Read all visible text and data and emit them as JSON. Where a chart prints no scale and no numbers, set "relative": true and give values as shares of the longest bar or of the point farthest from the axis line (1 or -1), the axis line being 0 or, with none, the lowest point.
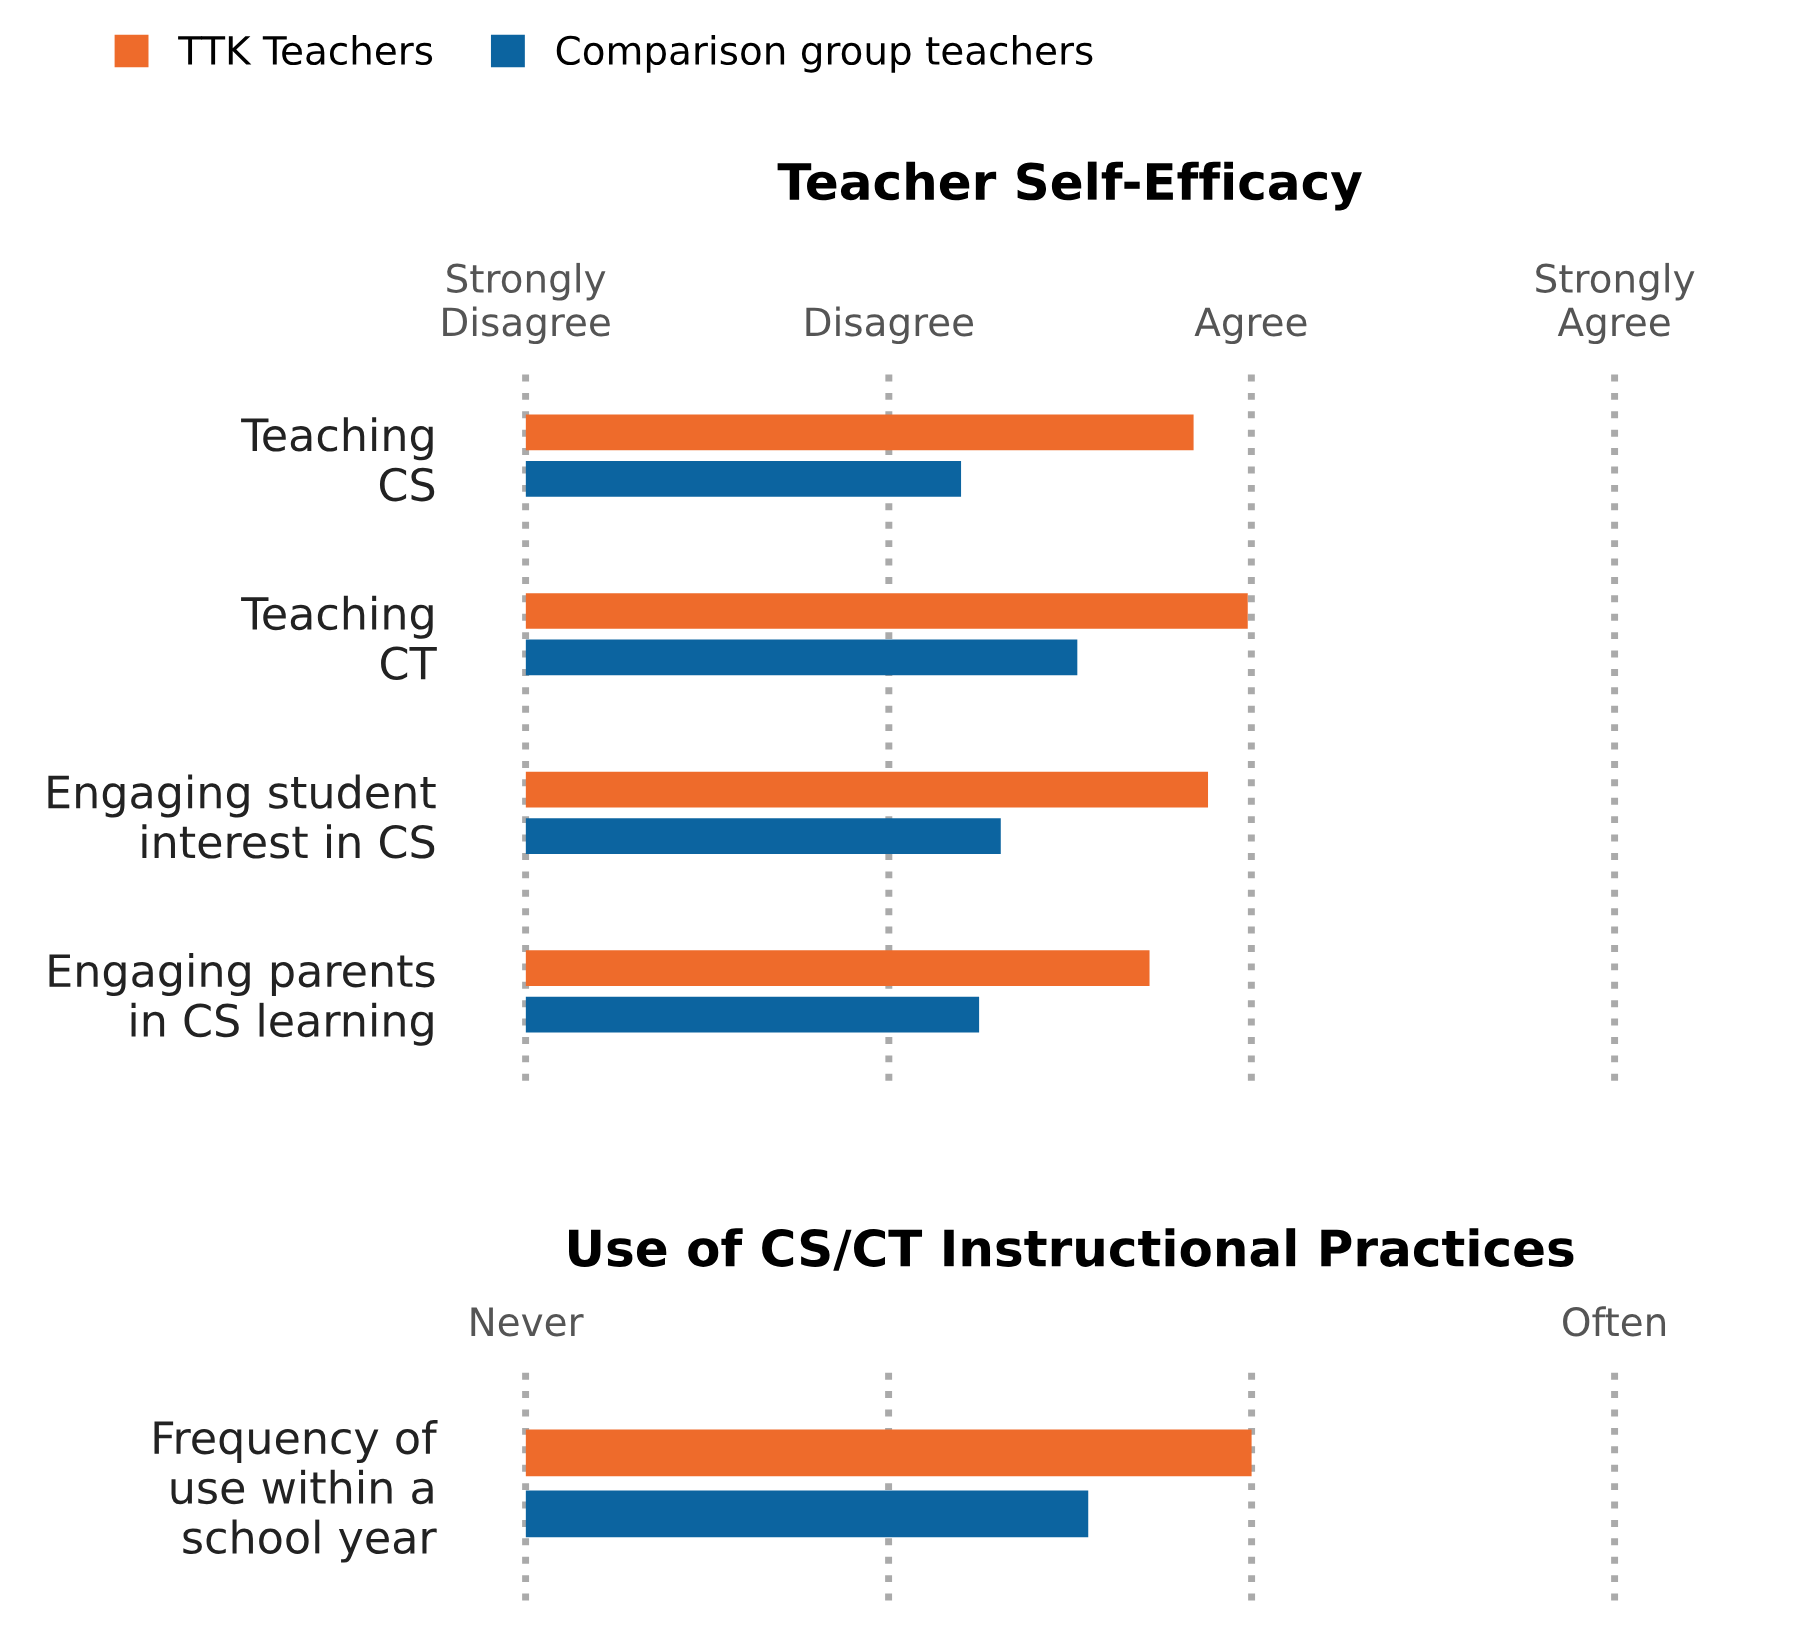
{
  "chart_data": [
    {
      "type": "bar",
      "orientation": "horizontal",
      "relative": true,
      "title": "Teacher Self-Efficacy",
      "categories": [
        "Teaching\nCS",
        "Teaching\nCT",
        "Engaging student\ninterest in CS",
        "Engaging parents\nin CS learning"
      ],
      "series": [
        {
          "name": "TTK Teachers",
          "color": "#ee6b2b",
          "values": [
            0.925,
            1,
            0.945,
            0.864
          ]
        },
        {
          "name": "Comparison group teachers",
          "color": "#0c64a0",
          "values": [
            0.603,
            0.764,
            0.658,
            0.628
          ]
        }
      ],
      "ref_lines": [
        {
          "axis": "x",
          "value": 0,
          "label": "Strongly\nDisagree"
        },
        {
          "axis": "x",
          "value": 0.503,
          "label": "Disagree"
        },
        {
          "axis": "x",
          "value": 1.005,
          "label": "Agree"
        },
        {
          "axis": "x",
          "value": 1.508,
          "label": "Strongly\nAgree"
        }
      ],
      "legend": "top left"
    },
    {
      "type": "bar",
      "orientation": "horizontal",
      "relative": true,
      "title": "Use of CS/CT Instructional Practices",
      "categories": [
        "Frequency of\nuse within a\nschool year"
      ],
      "series": [
        {
          "color": "#ee6b2b",
          "values": [
            1
          ]
        },
        {
          "color": "#0c64a0",
          "values": [
            0.775
          ]
        }
      ],
      "ref_lines": [
        {
          "axis": "x",
          "value": 0,
          "label": "Never"
        },
        {
          "axis": "x",
          "value": 0.5
        },
        {
          "axis": "x",
          "value": 1.0
        },
        {
          "axis": "x",
          "value": 1.5,
          "label": "Often"
        }
      ]
    }
  ]
}
